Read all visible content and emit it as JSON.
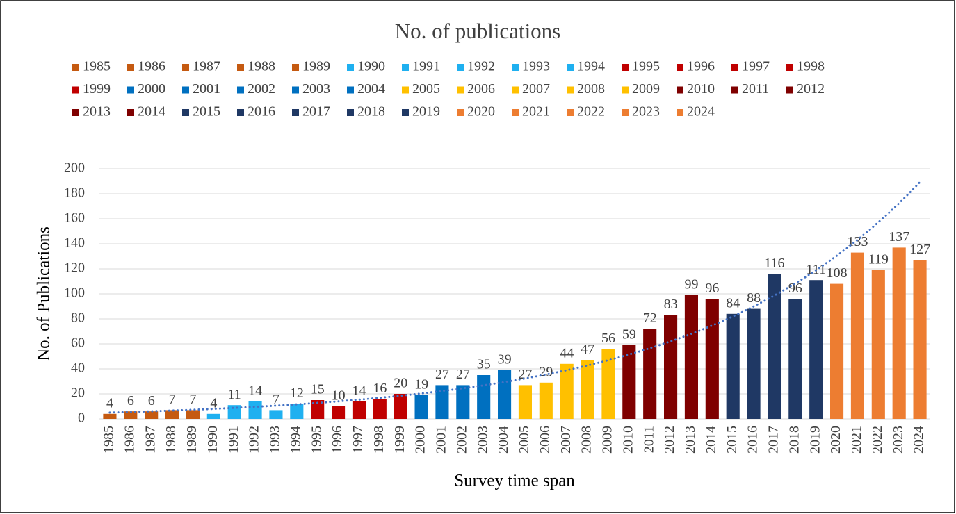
{
  "chart_data": {
    "type": "bar",
    "title": "No. of publications",
    "x_label": "Survey time span",
    "y_label": "No. of Publications",
    "categories": [
      "1985",
      "1986",
      "1987",
      "1988",
      "1989",
      "1990",
      "1991",
      "1992",
      "1993",
      "1994",
      "1995",
      "1996",
      "1997",
      "1998",
      "1999",
      "2000",
      "2001",
      "2002",
      "2003",
      "2004",
      "2005",
      "2006",
      "2007",
      "2008",
      "2009",
      "2010",
      "2011",
      "2012",
      "2013",
      "2014",
      "2015",
      "2016",
      "2017",
      "2018",
      "2019",
      "2020",
      "2021",
      "2022",
      "2023",
      "2024"
    ],
    "values": [
      4,
      6,
      6,
      7,
      7,
      4,
      11,
      14,
      7,
      12,
      15,
      10,
      14,
      16,
      20,
      19,
      27,
      27,
      35,
      39,
      27,
      29,
      44,
      47,
      56,
      59,
      72,
      83,
      99,
      96,
      84,
      88,
      116,
      96,
      111,
      108,
      133,
      119,
      137,
      127
    ],
    "colors": [
      "#c55a11",
      "#c55a11",
      "#c55a11",
      "#c55a11",
      "#c55a11",
      "#1fb0f0",
      "#1fb0f0",
      "#1fb0f0",
      "#1fb0f0",
      "#1fb0f0",
      "#c00000",
      "#c00000",
      "#c00000",
      "#c00000",
      "#c00000",
      "#0070c0",
      "#0070c0",
      "#0070c0",
      "#0070c0",
      "#0070c0",
      "#ffc000",
      "#ffc000",
      "#ffc000",
      "#ffc000",
      "#ffc000",
      "#7f0000",
      "#7f0000",
      "#7f0000",
      "#7f0000",
      "#7f0000",
      "#1f3864",
      "#1f3864",
      "#1f3864",
      "#1f3864",
      "#1f3864",
      "#ed7d31",
      "#ed7d31",
      "#ed7d31",
      "#ed7d31",
      "#ed7d31"
    ],
    "ylim": [
      0,
      200
    ],
    "yticks": [
      0,
      20,
      40,
      60,
      80,
      100,
      120,
      140,
      160,
      180,
      200
    ],
    "grid": true,
    "legend": "top",
    "trendline": {
      "type": "exponential",
      "color": "#4472c4"
    }
  }
}
